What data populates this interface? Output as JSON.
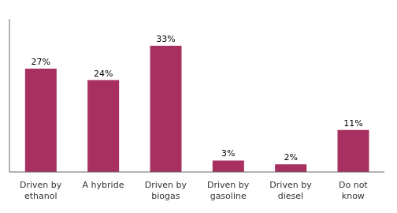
{
  "chart_data": {
    "type": "bar",
    "categories": [
      "Driven by\nethanol",
      "A hybride",
      "Driven by\nbiogas",
      "Driven by\ngasoline",
      "Driven by\ndiesel",
      "Do not\nknow"
    ],
    "values": [
      27,
      24,
      33,
      3,
      2,
      11
    ],
    "value_labels": [
      "27%",
      "24%",
      "33%",
      "3%",
      "2%",
      "11%"
    ],
    "data_labels": true,
    "color": "#a83060",
    "ylim": [
      0,
      40
    ],
    "grid": false,
    "tick_labels": "x"
  }
}
